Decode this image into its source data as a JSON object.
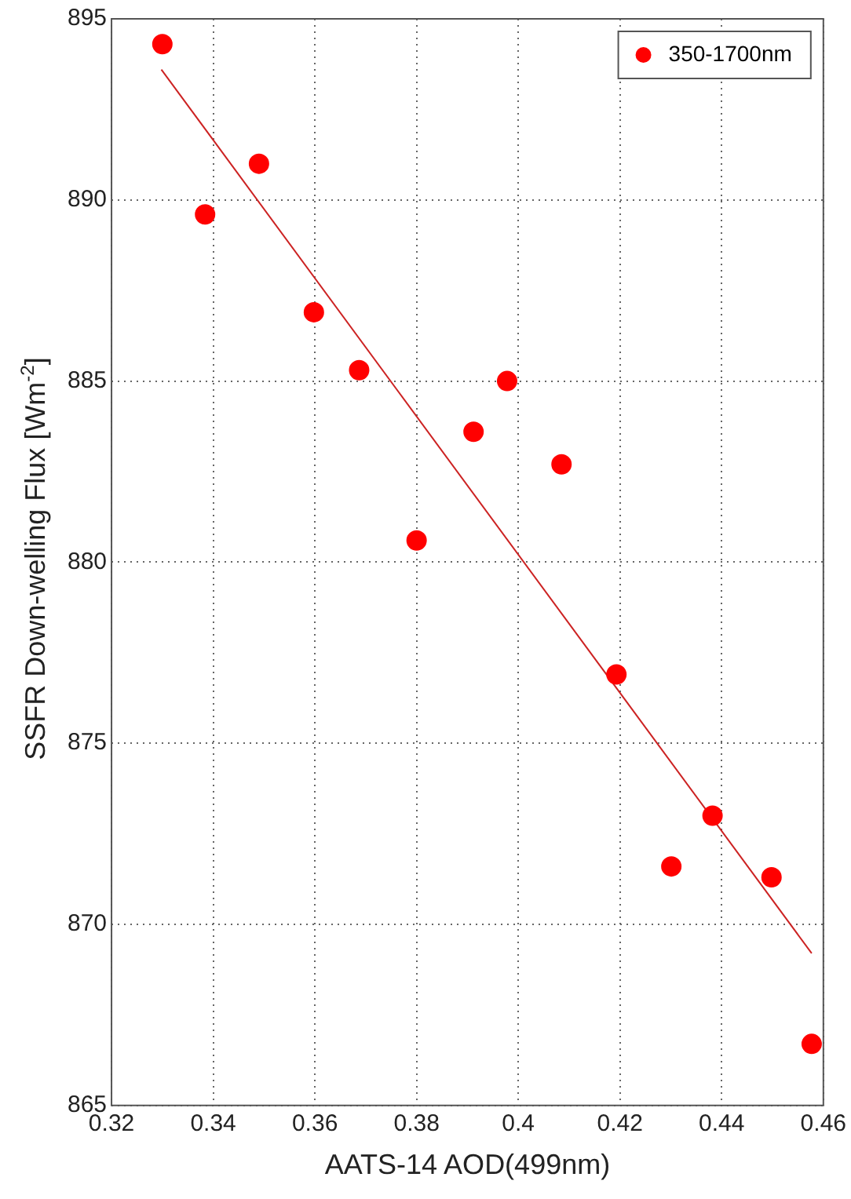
{
  "chart_data": {
    "type": "scatter",
    "xlabel": "AATS-14 AOD(499nm)",
    "ylabel": "SSFR Down-welling Flux [Wm$^{-2}$]",
    "series": [
      {
        "name": "350-1700nm",
        "color": "#ff0000",
        "marker": "circle",
        "x": [
          0.33,
          0.3384,
          0.349,
          0.3598,
          0.3687,
          0.38,
          0.3912,
          0.3978,
          0.4085,
          0.4193,
          0.4301,
          0.4382,
          0.4498,
          0.4577
        ],
        "values": [
          894.3,
          889.6,
          891.0,
          886.9,
          885.3,
          880.6,
          883.6,
          885.0,
          882.7,
          876.9,
          871.6,
          873.0,
          871.3,
          866.7
        ]
      },
      {
        "type": "line",
        "color": "#cc2222",
        "marker": "none",
        "line_style": "solid",
        "x": [
          0.3298,
          0.4577
        ],
        "values": [
          893.6,
          869.2
        ]
      }
    ],
    "xlim": [
      0.32,
      0.46
    ],
    "xticks": [
      0.32,
      0.34,
      0.36,
      0.38,
      0.4,
      0.42,
      0.44,
      0.46
    ],
    "ylim": [
      865,
      895
    ],
    "yticks": [
      865,
      870,
      875,
      880,
      885,
      890,
      895
    ],
    "grid": true,
    "legend": "top right"
  }
}
